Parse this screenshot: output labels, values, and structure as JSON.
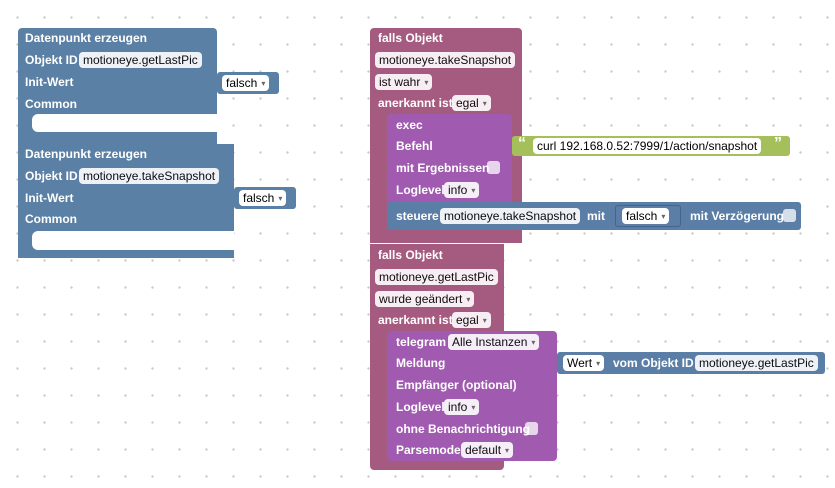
{
  "left_block_1": {
    "title": "Datenpunkt erzeugen",
    "objekt_id_label": "Objekt ID",
    "objekt_id_value": "motioneye.getLastPic",
    "init_wert_label": "Init-Wert",
    "init_wert_value": "falsch",
    "common_label": "Common"
  },
  "left_block_2": {
    "title": "Datenpunkt erzeugen",
    "objekt_id_label": "Objekt ID",
    "objekt_id_value": "motioneye.takeSnapshot",
    "init_wert_label": "Init-Wert",
    "init_wert_value": "falsch",
    "common_label": "Common"
  },
  "trigger_1": {
    "title": "falls Objekt",
    "object": "motioneye.takeSnapshot",
    "condition": "ist wahr",
    "ack_label": "anerkannt ist",
    "ack_value": "egal",
    "exec": {
      "title": "exec",
      "befehl_label": "Befehl",
      "quote_open": "“",
      "command": "curl 192.168.0.52:7999/1/action/snapshot",
      "quote_close": "”",
      "mit_ergebnissen_label": "mit Ergebnissen",
      "loglevel_label": "Loglevel",
      "loglevel_value": "info"
    },
    "steuere": {
      "label": "steuere",
      "object": "motioneye.takeSnapshot",
      "mit_label": "mit",
      "value": "falsch",
      "delay_label": "mit Verzögerung"
    }
  },
  "trigger_2": {
    "title": "falls Objekt",
    "object": "motioneye.getLastPic",
    "condition": "wurde geändert",
    "ack_label": "anerkannt ist",
    "ack_value": "egal",
    "telegram": {
      "title": "telegram",
      "instance": "Alle Instanzen",
      "meldung_label": "Meldung",
      "wert_value": "Wert",
      "vom_objekt_label": "vom Objekt ID",
      "vom_objekt_value": "motioneye.getLastPic",
      "empfaenger_label": "Empfänger (optional)",
      "loglevel_label": "Loglevel",
      "loglevel_value": "info",
      "ohne_label": "ohne Benachrichtigung",
      "parsemode_label": "Parsemode",
      "parsemode_value": "default"
    }
  },
  "colors": {
    "blue_block": "#5b80a5",
    "trigger_block": "#a55b80",
    "action_block": "#a05bb0",
    "steuere_block": "#5b7ea6",
    "text_block": "#a5c05b"
  },
  "icons": {
    "dropdown_arrow": "▾"
  }
}
